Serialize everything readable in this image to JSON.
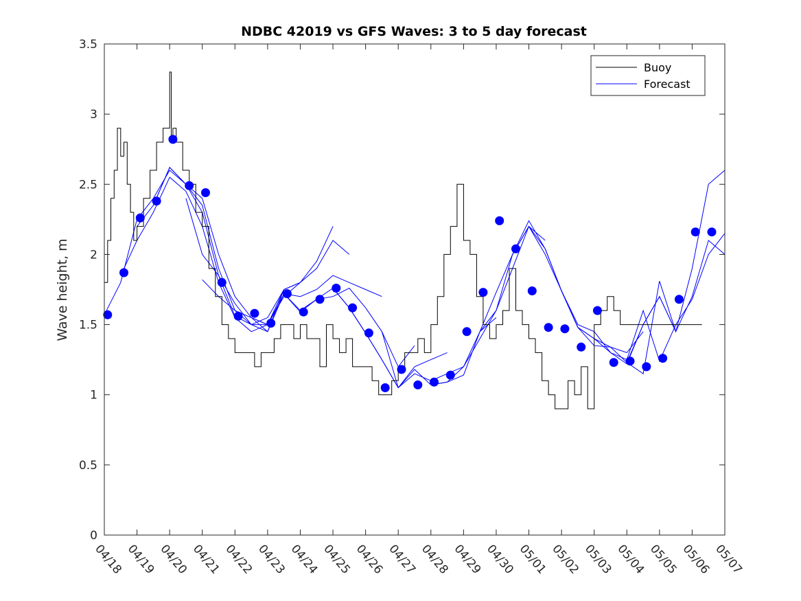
{
  "chart_data": {
    "type": "line",
    "title": "NDBC 42019 vs GFS Waves: 3 to 5 day forecast",
    "xlabel": "",
    "ylabel": "Wave height, m",
    "ylim": [
      0,
      3.5
    ],
    "yticks": [
      "0",
      "0.5",
      "1",
      "1.5",
      "2",
      "2.5",
      "3",
      "3.5"
    ],
    "xlim": [
      0,
      19
    ],
    "xticks": [
      "04/18",
      "04/19",
      "04/20",
      "04/21",
      "04/22",
      "04/23",
      "04/24",
      "04/25",
      "04/26",
      "04/27",
      "04/28",
      "04/29",
      "04/30",
      "05/01",
      "05/02",
      "05/03",
      "05/04",
      "05/05",
      "05/06",
      "05/07"
    ],
    "grid": false,
    "legend": {
      "position": "top-right",
      "entries": [
        "Buoy",
        "Forecast"
      ]
    },
    "colors": {
      "buoy": "#000000",
      "forecast": "#0000ff",
      "marker": "#0000ff"
    },
    "series": [
      {
        "name": "Buoy",
        "x": [
          0.0,
          0.1,
          0.2,
          0.3,
          0.4,
          0.5,
          0.6,
          0.7,
          0.8,
          0.9,
          1.0,
          1.2,
          1.4,
          1.6,
          1.8,
          2.0,
          2.05,
          2.1,
          2.2,
          2.4,
          2.6,
          2.8,
          3.0,
          3.2,
          3.4,
          3.6,
          3.8,
          4.0,
          4.2,
          4.4,
          4.6,
          4.8,
          5.0,
          5.2,
          5.4,
          5.6,
          5.8,
          6.0,
          6.2,
          6.4,
          6.6,
          6.8,
          7.0,
          7.2,
          7.4,
          7.6,
          7.8,
          8.0,
          8.2,
          8.4,
          8.6,
          8.8,
          9.0,
          9.2,
          9.4,
          9.6,
          9.8,
          10.0,
          10.2,
          10.4,
          10.6,
          10.8,
          11.0,
          11.2,
          11.4,
          11.6,
          11.8,
          12.0,
          12.2,
          12.4,
          12.6,
          12.8,
          13.0,
          13.2,
          13.4,
          13.6,
          13.8,
          14.0,
          14.2,
          14.4,
          14.6,
          14.8,
          15.0,
          15.2,
          15.4,
          15.6,
          15.8,
          16.0,
          16.2,
          16.4,
          16.6,
          16.8,
          17.0,
          17.2,
          17.4,
          17.6,
          17.8,
          18.0,
          18.2,
          18.3
        ],
        "values": [
          1.8,
          2.1,
          2.4,
          2.6,
          2.9,
          2.7,
          2.8,
          2.5,
          2.3,
          2.1,
          2.2,
          2.4,
          2.6,
          2.8,
          2.9,
          3.3,
          2.8,
          2.9,
          2.8,
          2.6,
          2.5,
          2.3,
          2.2,
          1.9,
          1.7,
          1.5,
          1.4,
          1.3,
          1.3,
          1.3,
          1.2,
          1.3,
          1.3,
          1.4,
          1.5,
          1.5,
          1.4,
          1.5,
          1.4,
          1.4,
          1.2,
          1.5,
          1.4,
          1.3,
          1.4,
          1.2,
          1.2,
          1.2,
          1.1,
          1.0,
          1.0,
          1.1,
          1.2,
          1.3,
          1.3,
          1.4,
          1.3,
          1.5,
          1.7,
          2.0,
          2.2,
          2.5,
          2.1,
          2.0,
          1.7,
          1.5,
          1.4,
          1.5,
          1.6,
          1.9,
          1.6,
          1.5,
          1.4,
          1.3,
          1.1,
          1.0,
          0.9,
          0.9,
          1.1,
          1.0,
          1.2,
          0.9,
          1.5,
          1.6,
          1.7,
          1.6,
          1.5,
          1.5,
          1.5,
          1.5,
          1.5,
          1.5,
          1.5,
          1.5,
          1.5,
          1.5,
          1.5,
          1.5,
          1.5,
          1.5
        ]
      },
      {
        "name": "Forecast",
        "runs": [
          {
            "x": [
              0.0,
              0.5,
              1.0,
              1.5,
              2.0,
              2.5,
              3.0,
              3.5,
              4.0,
              4.5,
              5.0
            ],
            "values": [
              1.57,
              1.8,
              2.25,
              2.4,
              2.6,
              2.5,
              2.3,
              1.85,
              1.56,
              1.5,
              1.5
            ]
          },
          {
            "x": [
              0.5,
              1.0,
              1.5,
              2.0,
              2.5,
              3.0,
              3.5,
              4.0,
              4.5,
              5.0,
              5.5
            ],
            "values": [
              1.85,
              2.1,
              2.3,
              2.55,
              2.45,
              2.2,
              1.8,
              1.55,
              1.45,
              1.5,
              1.75
            ]
          },
          {
            "x": [
              1.0,
              1.5,
              2.0,
              2.5,
              3.0,
              3.5,
              4.0,
              4.5,
              5.0,
              5.5,
              6.0
            ],
            "values": [
              2.2,
              2.35,
              2.62,
              2.5,
              2.35,
              1.9,
              1.6,
              1.5,
              1.55,
              1.75,
              1.8
            ]
          },
          {
            "x": [
              1.5,
              2.0,
              2.5,
              3.0,
              3.5,
              4.0,
              4.5,
              5.0,
              5.5,
              6.0,
              6.5,
              7.0
            ],
            "values": [
              2.35,
              2.62,
              2.5,
              2.4,
              2.0,
              1.7,
              1.55,
              1.5,
              1.7,
              1.8,
              1.95,
              2.2
            ]
          },
          {
            "x": [
              2.5,
              3.0,
              3.5,
              4.0,
              4.5,
              5.0,
              5.5,
              6.0,
              6.5,
              7.0,
              7.5
            ],
            "values": [
              2.4,
              2.0,
              1.85,
              1.65,
              1.5,
              1.45,
              1.75,
              1.8,
              1.9,
              2.1,
              2.0
            ]
          },
          {
            "x": [
              3.0,
              3.5,
              4.0,
              4.5,
              5.0,
              5.5,
              6.0,
              6.5,
              7.0,
              7.5,
              8.0,
              8.5
            ],
            "values": [
              1.82,
              1.7,
              1.6,
              1.55,
              1.5,
              1.72,
              1.7,
              1.75,
              1.85,
              1.8,
              1.75,
              1.7
            ]
          },
          {
            "x": [
              4.5,
              5.0,
              5.5,
              6.0,
              6.5,
              7.0,
              7.5,
              8.0,
              8.5,
              9.0,
              9.5
            ],
            "values": [
              1.55,
              1.45,
              1.72,
              1.6,
              1.68,
              1.7,
              1.76,
              1.62,
              1.45,
              1.2,
              1.35
            ]
          },
          {
            "x": [
              5.5,
              6.0,
              6.5,
              7.0,
              7.5,
              8.0,
              8.5,
              9.0,
              9.5,
              10.0,
              10.5
            ],
            "values": [
              1.72,
              1.59,
              1.68,
              1.76,
              1.62,
              1.44,
              1.25,
              1.05,
              1.2,
              1.25,
              1.3
            ]
          },
          {
            "x": [
              7.0,
              7.5,
              8.0,
              8.5,
              9.0,
              9.5,
              10.0,
              10.5,
              11.0,
              11.5,
              12.0
            ],
            "values": [
              1.76,
              1.62,
              1.44,
              1.25,
              1.05,
              1.15,
              1.1,
              1.15,
              1.2,
              1.45,
              1.55
            ]
          },
          {
            "x": [
              8.5,
              9.0,
              9.5,
              10.0,
              10.5,
              11.0,
              11.5,
              12.0,
              12.5,
              13.0,
              13.5
            ],
            "values": [
              1.45,
              1.05,
              1.18,
              1.07,
              1.09,
              1.14,
              1.45,
              1.6,
              1.9,
              2.2,
              2.1
            ]
          },
          {
            "x": [
              10.0,
              10.5,
              11.0,
              11.5,
              12.0,
              12.5,
              13.0,
              13.5,
              14.0,
              14.5,
              15.0
            ],
            "values": [
              1.07,
              1.09,
              1.2,
              1.4,
              1.6,
              2.0,
              2.2,
              2.04,
              1.74,
              1.48,
              1.4
            ]
          },
          {
            "x": [
              11.5,
              12.0,
              12.5,
              13.0,
              13.5,
              14.0,
              14.5,
              15.0,
              15.5,
              16.0,
              16.5
            ],
            "values": [
              1.45,
              1.73,
              2.0,
              2.24,
              2.04,
              1.74,
              1.48,
              1.35,
              1.34,
              1.3,
              1.45
            ]
          },
          {
            "x": [
              12.5,
              13.0,
              13.5,
              14.0,
              14.5,
              15.0,
              15.5,
              16.0,
              16.5,
              17.0,
              17.5
            ],
            "values": [
              2.0,
              2.2,
              2.0,
              1.74,
              1.48,
              1.4,
              1.3,
              1.22,
              1.5,
              1.7,
              1.45
            ]
          },
          {
            "x": [
              14.0,
              14.5,
              15.0,
              15.5,
              16.0,
              16.5,
              17.0,
              17.5,
              18.0,
              18.5,
              19.0
            ],
            "values": [
              1.74,
              1.5,
              1.45,
              1.3,
              1.25,
              1.6,
              1.24,
              1.5,
              1.68,
              2.0,
              2.15
            ]
          },
          {
            "x": [
              15.0,
              15.5,
              16.0,
              16.5,
              17.0,
              17.5,
              18.0,
              18.5,
              19.0
            ],
            "values": [
              1.4,
              1.34,
              1.23,
              1.15,
              1.81,
              1.45,
              1.7,
              2.1,
              2.0
            ]
          },
          {
            "x": [
              16.0,
              16.5,
              17.0,
              17.5,
              18.0,
              18.5,
              19.0
            ],
            "values": [
              1.23,
              1.5,
              1.7,
              1.45,
              1.9,
              2.5,
              2.6
            ]
          }
        ],
        "markers": {
          "x": [
            0.1,
            0.6,
            1.1,
            1.6,
            2.1,
            2.6,
            3.1,
            3.6,
            4.1,
            4.6,
            5.1,
            5.6,
            6.1,
            6.6,
            7.1,
            7.6,
            8.1,
            8.6,
            9.1,
            9.6,
            10.1,
            10.6,
            11.1,
            11.6,
            12.1,
            12.6,
            13.1,
            13.6,
            14.1,
            14.6,
            15.1,
            15.6,
            16.1,
            16.6,
            17.1,
            17.6,
            18.1,
            18.6
          ],
          "values": [
            1.57,
            1.87,
            2.26,
            2.38,
            2.82,
            2.49,
            2.44,
            1.8,
            1.56,
            1.58,
            1.51,
            1.72,
            1.59,
            1.68,
            1.76,
            1.62,
            1.44,
            1.05,
            1.18,
            1.07,
            1.09,
            1.14,
            1.45,
            1.73,
            2.24,
            2.04,
            1.74,
            1.48,
            1.47,
            1.34,
            1.6,
            1.23,
            1.24,
            1.2,
            1.26,
            1.68,
            2.16,
            2.16
          ]
        }
      }
    ]
  }
}
